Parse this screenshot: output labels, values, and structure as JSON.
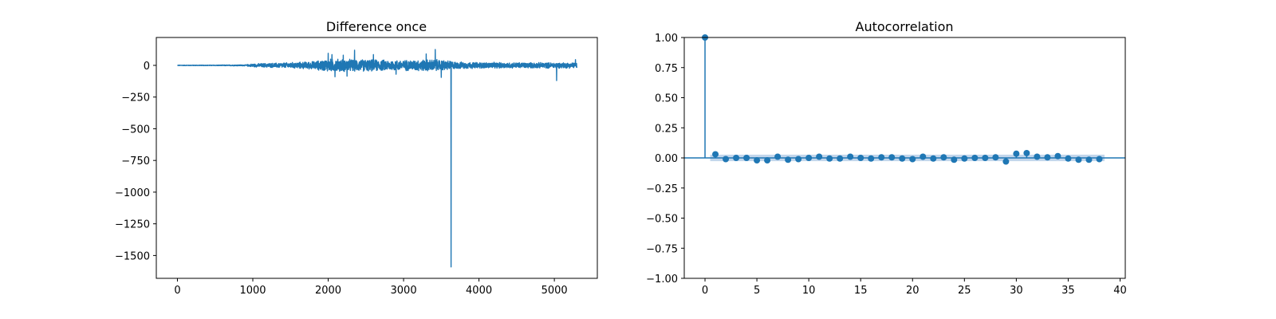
{
  "colors": {
    "series": "#1f77b4",
    "confidence_band": "#b4cce6",
    "axes": "#000000",
    "background": "#ffffff"
  },
  "chart_data": [
    {
      "type": "line",
      "title": "Difference once",
      "xlabel": "",
      "ylabel": "",
      "xlim": [
        -280,
        5570
      ],
      "ylim": [
        -1680,
        220
      ],
      "xticks": [
        0,
        1000,
        2000,
        3000,
        4000,
        5000
      ],
      "xtick_labels": [
        "0",
        "1000",
        "2000",
        "3000",
        "4000",
        "5000"
      ],
      "yticks": [
        0,
        -250,
        -500,
        -750,
        -1000,
        -1250,
        -1500
      ],
      "ytick_labels": [
        "0",
        "−250",
        "−500",
        "−750",
        "−1000",
        "−1250",
        "−1500"
      ],
      "grid": false,
      "n_points": 5300,
      "envelope": {
        "x": [
          0,
          500,
          900,
          1000,
          1200,
          1500,
          1800,
          2000,
          2200,
          2400,
          2600,
          2800,
          3000,
          3200,
          3400,
          3600,
          3700,
          4000,
          4500,
          5000,
          5300
        ],
        "amplitude": [
          2,
          3,
          5,
          14,
          18,
          24,
          34,
          55,
          55,
          52,
          50,
          46,
          45,
          48,
          52,
          42,
          30,
          26,
          24,
          24,
          24
        ]
      },
      "spikes": [
        {
          "x": 2000,
          "y": 95
        },
        {
          "x": 2050,
          "y": 85
        },
        {
          "x": 2090,
          "y": -90
        },
        {
          "x": 2200,
          "y": 80
        },
        {
          "x": 2250,
          "y": -85
        },
        {
          "x": 2350,
          "y": 120
        },
        {
          "x": 2600,
          "y": 85
        },
        {
          "x": 2900,
          "y": -70
        },
        {
          "x": 3300,
          "y": 90
        },
        {
          "x": 3420,
          "y": 125
        },
        {
          "x": 3500,
          "y": -95
        },
        {
          "x": 3630,
          "y": -1590
        },
        {
          "x": 5030,
          "y": -120
        },
        {
          "x": 5280,
          "y": 45
        }
      ]
    },
    {
      "type": "scatter",
      "subtype": "acf_stem",
      "title": "Autocorrelation",
      "xlabel": "",
      "ylabel": "",
      "xlim": [
        -2,
        40.5
      ],
      "ylim": [
        -1.0,
        1.0
      ],
      "xticks": [
        0,
        5,
        10,
        15,
        20,
        25,
        30,
        35,
        40
      ],
      "xtick_labels": [
        "0",
        "5",
        "10",
        "15",
        "20",
        "25",
        "30",
        "35",
        "40"
      ],
      "yticks": [
        1.0,
        0.75,
        0.5,
        0.25,
        0.0,
        -0.25,
        -0.5,
        -0.75,
        -1.0
      ],
      "ytick_labels": [
        "1.00",
        "0.75",
        "0.50",
        "0.25",
        "0.00",
        "−0.25",
        "−0.50",
        "−0.75",
        "−1.00"
      ],
      "grid": false,
      "lags": [
        0,
        1,
        2,
        3,
        4,
        5,
        6,
        7,
        8,
        9,
        10,
        11,
        12,
        13,
        14,
        15,
        16,
        17,
        18,
        19,
        20,
        21,
        22,
        23,
        24,
        25,
        26,
        27,
        28,
        29,
        30,
        31,
        32,
        33,
        34,
        35,
        36,
        37,
        38
      ],
      "values": [
        1.0,
        0.03,
        -0.01,
        0.0,
        0.0,
        -0.02,
        -0.02,
        0.01,
        -0.015,
        -0.01,
        0.0,
        0.01,
        -0.005,
        -0.005,
        0.01,
        0.0,
        -0.005,
        0.005,
        0.005,
        -0.005,
        -0.01,
        0.01,
        -0.005,
        0.005,
        -0.015,
        -0.005,
        0.0,
        0.0,
        0.005,
        -0.03,
        0.035,
        0.04,
        0.01,
        0.005,
        0.015,
        -0.005,
        -0.015,
        -0.015,
        -0.01
      ],
      "confidence_band": 0.027
    }
  ]
}
